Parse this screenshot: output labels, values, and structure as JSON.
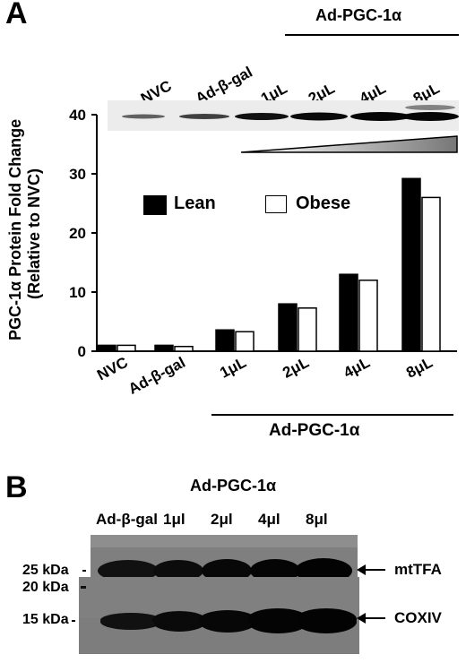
{
  "panel_a": {
    "letter": "A",
    "blot_top_label": "Ad-PGC-1α",
    "blot_lanes": [
      "NVC",
      "Ad-β-gal",
      "1μL",
      "2μL",
      "4μL",
      "8μL"
    ]
  },
  "chart_data": {
    "type": "bar",
    "ylabel_line1": "PGC-1α  Protein Fold Change",
    "ylabel_line2": "(Relative to NVC)",
    "categories": [
      "NVC",
      "Ad-β-gal",
      "1μL",
      "2μL",
      "4μL",
      "8μL"
    ],
    "series": [
      {
        "name": "Lean",
        "color": "#000000",
        "values": [
          1.0,
          1.0,
          3.6,
          8.0,
          13.0,
          29.2
        ]
      },
      {
        "name": "Obese",
        "color": "#ffffff",
        "values": [
          1.0,
          0.8,
          3.3,
          7.3,
          12.0,
          26.0
        ]
      }
    ],
    "ylim": [
      0,
      40
    ],
    "yticks": [
      0,
      10,
      20,
      30,
      40
    ],
    "xgroup_label": "Ad-PGC-1α",
    "legend_position": "top-center",
    "grid": false
  },
  "panel_b": {
    "letter": "B",
    "top_label": "Ad-PGC-1α",
    "lanes": [
      "Ad-β-gal",
      "1μl",
      "2μl",
      "4μl",
      "8μl"
    ],
    "markers": [
      "25 kDa",
      "20 kDa",
      "15 kDa"
    ],
    "band_labels": [
      "mtTFA",
      "COXIV"
    ]
  }
}
